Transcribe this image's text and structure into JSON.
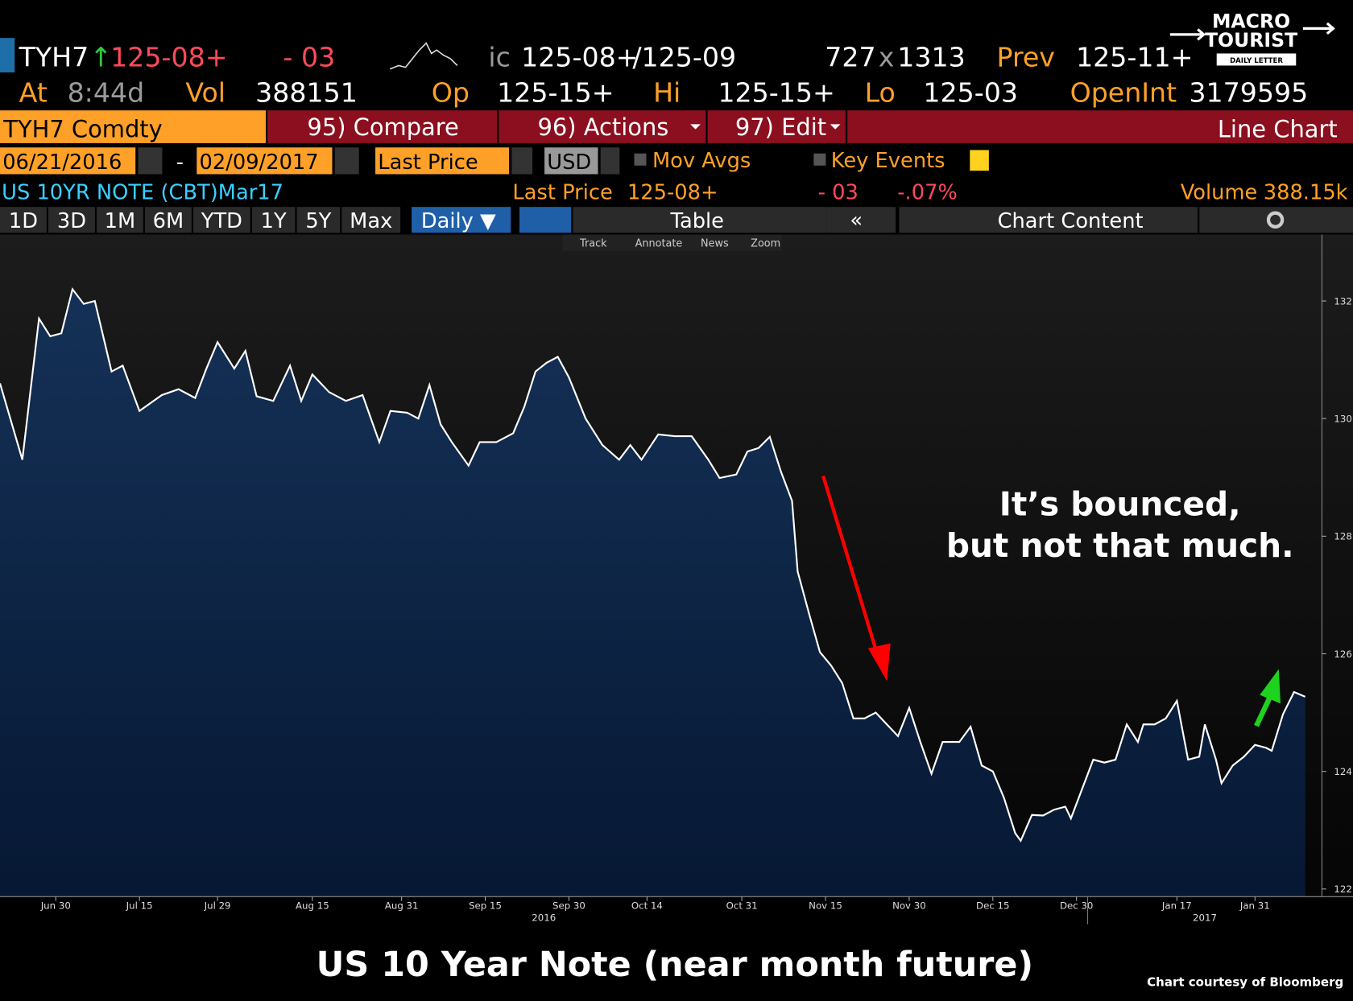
{
  "terminal": {
    "row1": {
      "ticker": "TYH7",
      "up_arrow": "↑",
      "last": "125-08+",
      "change": "- 03",
      "ic": "ic",
      "bid": "125-08+",
      "ask": "/125-09",
      "bid_size": "727",
      "x": "x",
      "ask_size": "1313",
      "prev_label": "Prev",
      "prev": "125-11+"
    },
    "row2": {
      "at_label": "At",
      "time": "8:44d",
      "vol_label": "Vol",
      "vol": "388151",
      "op_label": "Op",
      "op": "125-15+",
      "hi_label": "Hi",
      "hi": "125-15+",
      "lo_label": "Lo",
      "lo": "125-03",
      "oi_label": "OpenInt",
      "oi": "3179595"
    },
    "menu": {
      "security": "TYH7 Comdty",
      "compare": "95) Compare",
      "actions": "96) Actions",
      "edit": "97) Edit",
      "chart_kind": "Line Chart"
    },
    "controls": {
      "start": "06/21/2016",
      "dash": "-",
      "end": "02/09/2017",
      "field": "Last Price",
      "currency": "USD",
      "mov_avgs": "Mov Avgs",
      "key_events": "Key Events"
    },
    "legend": {
      "name": "US 10YR NOTE (CBT)Mar17",
      "field": "Last Price",
      "last": "125-08+",
      "change": "- 03",
      "pct": "-.07%",
      "volume_label": "Volume",
      "volume": "388.15k"
    },
    "periods": [
      "1D",
      "3D",
      "1M",
      "6M",
      "YTD",
      "1Y",
      "5Y",
      "Max"
    ],
    "frequency": "Daily ▼",
    "table": "Table",
    "chart_content": "Chart Content",
    "tools": [
      "Track",
      "Annotate",
      "News",
      "Zoom"
    ]
  },
  "logo": {
    "line1": "MACRO",
    "line2": "TOURIST",
    "line3": "DAILY LETTER"
  },
  "chart_data": {
    "type": "area",
    "title": "US 10 Year Note (near month future)",
    "annotation": [
      "It’s bounced,",
      "but not that much."
    ],
    "credit": "Chart courtesy of Bloomberg",
    "x": [
      "2016-06-20",
      "2016-06-24",
      "2016-06-27",
      "2016-06-29",
      "2016-07-01",
      "2016-07-03",
      "2016-07-05",
      "2016-07-07",
      "2016-07-10",
      "2016-07-12",
      "2016-07-15",
      "2016-07-19",
      "2016-07-22",
      "2016-07-25",
      "2016-07-27",
      "2016-07-29",
      "2016-08-01",
      "2016-08-03",
      "2016-08-05",
      "2016-08-08",
      "2016-08-11",
      "2016-08-13",
      "2016-08-15",
      "2016-08-18",
      "2016-08-21",
      "2016-08-24",
      "2016-08-27",
      "2016-08-29",
      "2016-09-01",
      "2016-09-03",
      "2016-09-05",
      "2016-09-07",
      "2016-09-09",
      "2016-09-12",
      "2016-09-14",
      "2016-09-17",
      "2016-09-20",
      "2016-09-22",
      "2016-09-24",
      "2016-09-26",
      "2016-09-28",
      "2016-09-30",
      "2016-10-03",
      "2016-10-06",
      "2016-10-09",
      "2016-10-11",
      "2016-10-13",
      "2016-10-16",
      "2016-10-19",
      "2016-10-22",
      "2016-10-25",
      "2016-10-27",
      "2016-10-30",
      "2016-11-01",
      "2016-11-03",
      "2016-11-05",
      "2016-11-07",
      "2016-11-09",
      "2016-11-10",
      "2016-11-12",
      "2016-11-14",
      "2016-11-16",
      "2016-11-18",
      "2016-11-20",
      "2016-11-22",
      "2016-11-24",
      "2016-11-26",
      "2016-11-28",
      "2016-11-30",
      "2016-12-02",
      "2016-12-04",
      "2016-12-06",
      "2016-12-09",
      "2016-12-11",
      "2016-12-13",
      "2016-12-15",
      "2016-12-17",
      "2016-12-19",
      "2016-12-20",
      "2016-12-22",
      "2016-12-24",
      "2016-12-26",
      "2016-12-28",
      "2016-12-29",
      "2016-12-31",
      "2017-01-02",
      "2017-01-04",
      "2017-01-06",
      "2017-01-08",
      "2017-01-10",
      "2017-01-11",
      "2017-01-13",
      "2017-01-15",
      "2017-01-17",
      "2017-01-19",
      "2017-01-21",
      "2017-01-22",
      "2017-01-24",
      "2017-01-25",
      "2017-01-27",
      "2017-01-29",
      "2017-01-31",
      "2017-02-02",
      "2017-02-03",
      "2017-02-05",
      "2017-02-07",
      "2017-02-09"
    ],
    "values": [
      130.6,
      129.3,
      131.7,
      131.4,
      131.45,
      132.2,
      131.95,
      132.0,
      130.8,
      130.9,
      130.13,
      130.4,
      130.5,
      130.35,
      130.85,
      131.3,
      130.85,
      131.15,
      130.38,
      130.3,
      130.9,
      130.3,
      130.75,
      130.45,
      130.3,
      130.4,
      129.6,
      130.13,
      130.1,
      130.0,
      130.57,
      129.9,
      129.6,
      129.2,
      129.6,
      129.6,
      129.75,
      130.2,
      130.8,
      130.95,
      131.05,
      130.7,
      130.0,
      129.55,
      129.3,
      129.55,
      129.3,
      129.73,
      129.7,
      129.7,
      129.3,
      128.99,
      129.05,
      129.44,
      129.5,
      129.69,
      129.1,
      128.6,
      127.4,
      126.7,
      126.03,
      125.8,
      125.5,
      124.9,
      124.9,
      125.0,
      124.8,
      124.6,
      125.08,
      124.5,
      123.96,
      124.5,
      124.5,
      124.76,
      124.1,
      124.0,
      123.55,
      122.95,
      122.82,
      123.26,
      123.25,
      123.35,
      123.4,
      123.2,
      123.7,
      124.2,
      124.15,
      124.2,
      124.8,
      124.5,
      124.8,
      124.8,
      124.9,
      125.2,
      124.2,
      124.25,
      124.8,
      124.2,
      123.8,
      124.1,
      124.25,
      124.45,
      124.4,
      124.35,
      124.97,
      125.35,
      125.27
    ],
    "color": "#ffffff",
    "fill": "#0d2749",
    "xlim": [
      "2016-06-20",
      "2017-02-12"
    ],
    "xticks": [
      {
        "value": "2016-06-30",
        "label": "Jun 30"
      },
      {
        "value": "2016-07-15",
        "label": "Jul 15"
      },
      {
        "value": "2016-07-29",
        "label": "Jul 29"
      },
      {
        "value": "2016-08-15",
        "label": "Aug 15"
      },
      {
        "value": "2016-08-31",
        "label": "Aug 31"
      },
      {
        "value": "2016-09-15",
        "label": "Sep 15"
      },
      {
        "value": "2016-09-30",
        "label": "Sep 30"
      },
      {
        "value": "2016-10-14",
        "label": "Oct 14"
      },
      {
        "value": "2016-10-31",
        "label": "Oct 31"
      },
      {
        "value": "2016-11-15",
        "label": "Nov 15"
      },
      {
        "value": "2016-11-30",
        "label": "Nov 30"
      },
      {
        "value": "2016-12-15",
        "label": "Dec 15"
      },
      {
        "value": "2016-12-30",
        "label": "Dec 30"
      },
      {
        "value": "2017-01-17",
        "label": "Jan 17"
      },
      {
        "value": "2017-01-31",
        "label": "Jan 31"
      }
    ],
    "years": [
      "2016",
      "2017"
    ],
    "ylim": [
      121.87,
      133.13
    ],
    "yticks": [
      122,
      124,
      126,
      128,
      130,
      132
    ],
    "y_axis_side": "right"
  }
}
